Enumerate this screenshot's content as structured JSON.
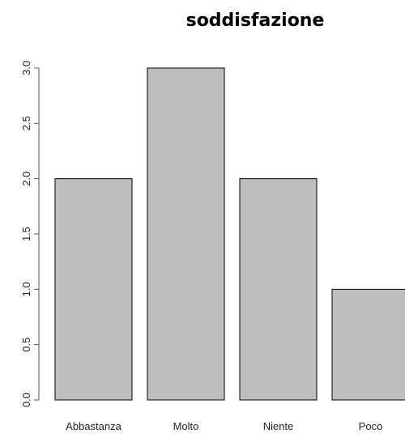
{
  "chart_data": {
    "type": "bar",
    "title": "soddisfazione",
    "categories": [
      "Abbastanza",
      "Molto",
      "Niente",
      "Poco"
    ],
    "values": [
      2,
      3,
      2,
      1
    ],
    "xlabel": "",
    "ylabel": "",
    "ylim": [
      0,
      3
    ],
    "yticks": [
      "0.0",
      "0.5",
      "1.0",
      "1.5",
      "2.0",
      "2.5",
      "3.0"
    ],
    "grid": false,
    "colors": {
      "bar_fill": "#bebebe",
      "bar_stroke": "#000000"
    }
  }
}
